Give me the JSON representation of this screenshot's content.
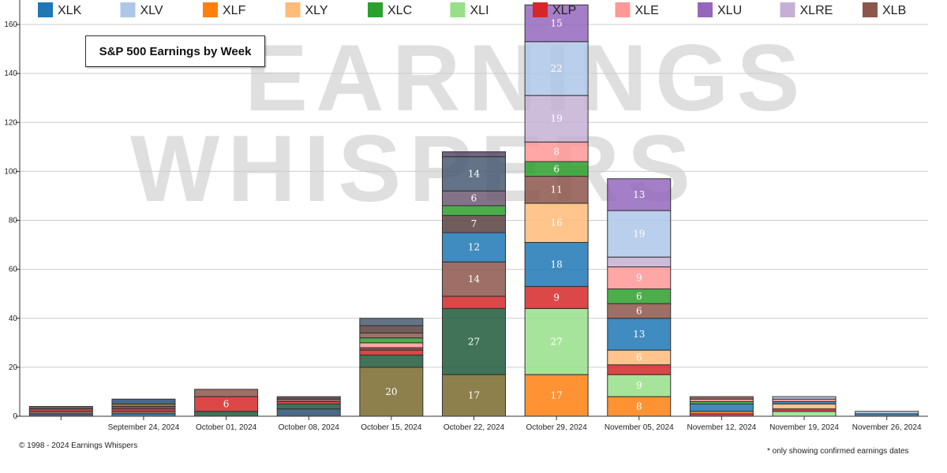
{
  "title": "S&P 500 Earnings by Week",
  "copyright": "© 1998 - 2024 Earnings Whispers",
  "footnote": "* only showing confirmed earnings dates",
  "watermark": {
    "line1": "EARNINGS",
    "line2": "WHISPERS"
  },
  "chart_data": {
    "type": "bar",
    "stacked": true,
    "title": "S&P 500 Earnings by Week",
    "ylim": [
      0,
      170
    ],
    "yticks": [
      0,
      20,
      40,
      60,
      80,
      100,
      120,
      140,
      160
    ],
    "grid": true,
    "legend_position": "top",
    "categories": [
      "",
      "September 24, 2024",
      "October 01, 2024",
      "October 08, 2024",
      "October 15, 2024",
      "October 22, 2024",
      "October 29, 2024",
      "November 05, 2024",
      "November 12, 2024",
      "November 19, 2024",
      "November 26, 2024"
    ],
    "series": [
      {
        "name": "XLK",
        "color": "#1f77b4",
        "values": [
          0,
          1,
          0,
          0,
          0,
          12,
          18,
          13,
          3,
          1,
          1
        ]
      },
      {
        "name": "XLV",
        "color": "#aec7e8",
        "values": [
          0,
          0,
          0,
          0,
          0,
          0,
          22,
          19,
          0,
          1,
          1
        ]
      },
      {
        "name": "XLF",
        "color": "#ff7f0e",
        "values": [
          0,
          0,
          0,
          0,
          0,
          0,
          17,
          8,
          1,
          0,
          0
        ]
      },
      {
        "name": "XLY",
        "color": "#ffbb78",
        "values": [
          0,
          0,
          0,
          0,
          0,
          0,
          16,
          6,
          0,
          2,
          0
        ]
      },
      {
        "name": "XLC",
        "color": "#2ca02c",
        "values": [
          0,
          0,
          0,
          0,
          2,
          4,
          6,
          6,
          1,
          0,
          0
        ]
      },
      {
        "name": "XLI",
        "color": "#98df8a",
        "values": [
          0,
          0,
          0,
          0,
          0,
          0,
          27,
          9,
          0,
          2,
          0
        ]
      },
      {
        "name": "XLP",
        "color": "#d62728",
        "values": [
          1,
          1,
          6,
          1,
          2,
          5,
          9,
          4,
          1,
          1,
          0
        ]
      },
      {
        "name": "XLE",
        "color": "#ff9896",
        "values": [
          0,
          0,
          0,
          0,
          2,
          0,
          8,
          9,
          1,
          1,
          0
        ]
      },
      {
        "name": "XLU",
        "color": "#9467bd",
        "values": [
          0,
          0,
          0,
          0,
          0,
          2,
          15,
          13,
          0,
          0,
          0
        ]
      },
      {
        "name": "XLRE",
        "color": "#c5b0d5",
        "values": [
          0,
          0,
          0,
          0,
          0,
          0,
          19,
          4,
          0,
          0,
          0
        ]
      },
      {
        "name": "XLB",
        "color": "#8c564b",
        "values": [
          1,
          1,
          3,
          1,
          2,
          14,
          11,
          6,
          1,
          0,
          0
        ]
      },
      {
        "name": "",
        "color": "#1e5a3a",
        "values": [
          1,
          0,
          2,
          2,
          5,
          27,
          0,
          0,
          0,
          0,
          0
        ]
      },
      {
        "name": "",
        "color": "#8a2e2e",
        "values": [
          0,
          1,
          0,
          0,
          1,
          0,
          0,
          0,
          0,
          0,
          0
        ]
      },
      {
        "name": "",
        "color": "#7a6a2e",
        "values": [
          0,
          1,
          0,
          0,
          20,
          17,
          0,
          0,
          0,
          0,
          0
        ]
      },
      {
        "name": "",
        "color": "#2b4f73",
        "values": [
          1,
          2,
          0,
          3,
          0,
          0,
          0,
          0,
          0,
          0,
          0
        ]
      },
      {
        "name": "",
        "color": "#5a4040",
        "values": [
          1,
          0,
          0,
          1,
          3,
          7,
          0,
          0,
          0,
          0,
          0
        ]
      },
      {
        "name": "",
        "color": "#4a5b73",
        "values": [
          0,
          0,
          0,
          0,
          3,
          14,
          0,
          0,
          0,
          0,
          0
        ]
      },
      {
        "name": "",
        "color": "#6e5a73",
        "values": [
          0,
          0,
          0,
          0,
          0,
          6,
          0,
          0,
          0,
          0,
          0
        ]
      },
      {
        "name": "",
        "color": "#5a4a6a",
        "values": [
          0,
          0,
          0,
          0,
          0,
          2,
          0,
          0,
          0,
          0,
          0
        ]
      }
    ],
    "stack_order": [
      [
        14,
        13,
        10,
        6,
        12,
        15
      ],
      [
        0,
        10,
        6,
        12,
        13,
        14
      ],
      [
        11,
        6,
        10
      ],
      [
        14,
        11,
        6,
        10,
        15
      ],
      [
        13,
        11,
        6,
        12,
        7,
        4,
        10,
        15,
        16
      ],
      [
        13,
        11,
        6,
        10,
        0,
        15,
        4,
        17,
        16,
        18
      ],
      [
        2,
        5,
        6,
        0,
        3,
        10,
        4,
        7,
        9,
        1,
        8
      ],
      [
        2,
        5,
        6,
        3,
        0,
        10,
        4,
        7,
        9,
        1,
        8
      ],
      [
        6,
        2,
        0,
        4,
        7,
        10
      ],
      [
        5,
        6,
        3,
        0,
        7,
        1
      ],
      [
        0,
        1
      ]
    ],
    "data_labels": [
      [],
      [],
      [
        "6"
      ],
      [],
      [
        "20"
      ],
      [
        "17",
        "27",
        "14",
        "12",
        "7",
        "6",
        "14"
      ],
      [
        "17",
        "27",
        "9",
        "18",
        "16",
        "11",
        "6",
        "8",
        "19",
        "22",
        "15"
      ],
      [
        "8",
        "9",
        "6",
        "13",
        "6",
        "6",
        "9",
        "19",
        "13"
      ],
      [],
      [],
      []
    ]
  }
}
